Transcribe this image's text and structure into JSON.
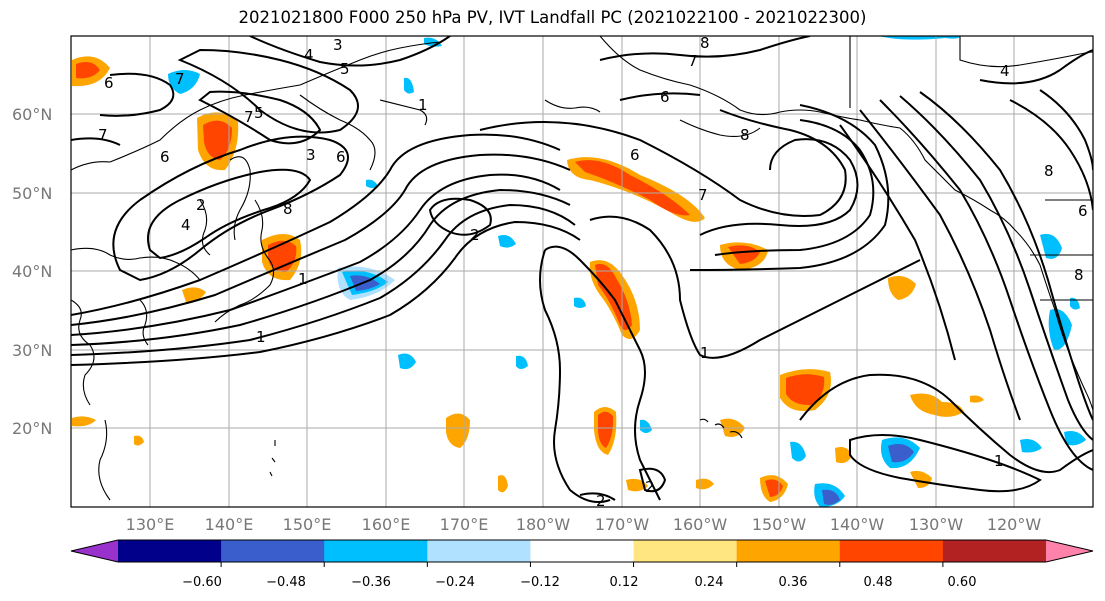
{
  "title": "2021021800 F000 250 hPa PV, IVT Landfall PC (2021022100 - 2021022300)",
  "map": {
    "projection": "cylindrical",
    "lon_range": [
      "120°E",
      "120°W"
    ],
    "lat_range": [
      "10°N",
      "70°N"
    ],
    "grid": true,
    "lat_labels": [
      "60°N",
      "50°N",
      "40°N",
      "30°N",
      "20°N"
    ],
    "lon_labels": [
      "130°E",
      "140°E",
      "150°E",
      "160°E",
      "170°E",
      "180°W",
      "170°W",
      "160°W",
      "150°W",
      "140°W",
      "130°W",
      "120°W"
    ],
    "pv_contour_labels": [
      "3",
      "4",
      "5",
      "7",
      "6",
      "7",
      "7",
      "6",
      "5",
      "4",
      "3",
      "2",
      "1",
      "8",
      "6",
      "6",
      "2",
      "1",
      "8",
      "6",
      "7",
      "8",
      "8",
      "6",
      "8",
      "7",
      "2",
      "1",
      "1",
      "2",
      "1",
      "4"
    ]
  },
  "colorbar": {
    "ticks": [
      "−0.60",
      "−0.48",
      "−0.36",
      "−0.24",
      "−0.12",
      "0.12",
      "0.24",
      "0.36",
      "0.48",
      "0.60"
    ],
    "colors": [
      "#9932cc",
      "#00008b",
      "#3a5fcd",
      "#00bfff",
      "#b0e2ff",
      "#ffffff",
      "#ffe680",
      "#ffa500",
      "#ff4500",
      "#b22222",
      "#ff82ab"
    ],
    "extend": "both"
  }
}
